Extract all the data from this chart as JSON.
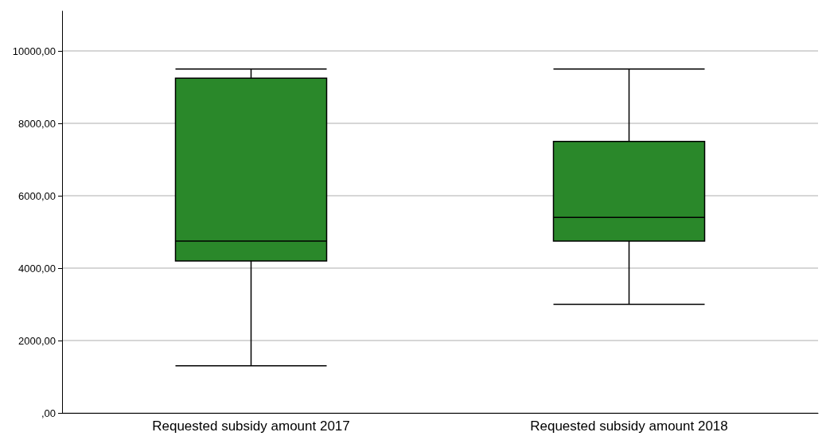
{
  "chart_data": {
    "type": "box",
    "categories": [
      "Requested subsidy amount 2017",
      "Requested subsidy amount 2018"
    ],
    "boxes": [
      {
        "low": 1300,
        "q1": 4200,
        "median": 4750,
        "q3": 9250,
        "high": 9500
      },
      {
        "low": 3000,
        "q1": 4750,
        "median": 5400,
        "q3": 7500,
        "high": 9500
      }
    ],
    "color": "#2a882a",
    "ylim": [
      0,
      11100
    ],
    "yticks": [
      {
        "value": 0,
        "label": ",00"
      },
      {
        "value": 2000,
        "label": "2000,00"
      },
      {
        "value": 4000,
        "label": "4000,00"
      },
      {
        "value": 6000,
        "label": "6000,00"
      },
      {
        "value": 8000,
        "label": "8000,00"
      },
      {
        "value": 10000,
        "label": "10000,00"
      }
    ],
    "grid": "y"
  }
}
